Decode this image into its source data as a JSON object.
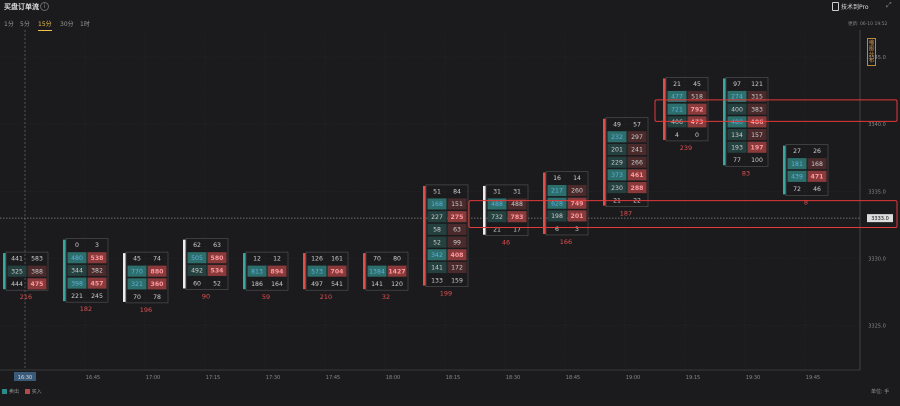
{
  "header": {
    "title": "买盘订单流",
    "info_icon": "info-icon",
    "brand": "技术到Pro",
    "updated": "更新: 06-10 19:52"
  },
  "tabs": [
    {
      "label": "1分",
      "active": false
    },
    {
      "label": "5分",
      "active": false
    },
    {
      "label": "15分",
      "active": true
    },
    {
      "label": "30分",
      "active": false
    },
    {
      "label": "1时",
      "active": false
    }
  ],
  "side_button": "缩图分布",
  "legend": {
    "sell_label": "卖出",
    "buy_label": "买入",
    "sell_color": "#2d8a86",
    "buy_color": "#b24a4a"
  },
  "unit_label": "单位: 手",
  "chart_data": {
    "type": "footprint",
    "ylim": [
      3321.7,
      3347
    ],
    "y_ticks": [
      "3345.0",
      "3340.0",
      "3335.0",
      "3330.0",
      "3325.0"
    ],
    "current_price": "3333.0",
    "crosshair_time": "16:30",
    "x_ticks": [
      "16:45",
      "17:00",
      "17:15",
      "17:30",
      "17:45",
      "18:00",
      "18:15",
      "18:30",
      "18:45",
      "19:00",
      "19:15",
      "19:30",
      "19:45"
    ],
    "bars": [
      {
        "start": 3330,
        "side": "sell",
        "rows": [
          [
            441,
            583
          ],
          [
            325,
            388
          ],
          [
            444,
            475
          ]
        ],
        "hl": [
          [
            2,
            2
          ]
        ],
        "total": "216"
      },
      {
        "start": 3331,
        "side": "sell",
        "rows": [
          [
            0,
            3
          ],
          [
            480,
            538
          ],
          [
            344,
            382
          ],
          [
            398,
            457
          ],
          [
            221,
            245
          ]
        ],
        "hl": [
          [
            1,
            2
          ],
          [
            1,
            1
          ],
          [
            3,
            1
          ],
          [
            3,
            2
          ]
        ],
        "total": "182"
      },
      {
        "start": 3330,
        "side": "buy",
        "rows": [
          [
            45,
            74
          ],
          [
            770,
            880
          ],
          [
            321,
            360
          ],
          [
            70,
            78
          ]
        ],
        "hl": [
          [
            1,
            2
          ],
          [
            1,
            1
          ],
          [
            2,
            1
          ],
          [
            2,
            2
          ]
        ],
        "total": "196"
      },
      {
        "start": 3331,
        "side": "buy",
        "rows": [
          [
            62,
            63
          ],
          [
            505,
            580
          ],
          [
            492,
            534
          ],
          [
            60,
            52
          ]
        ],
        "hl": [
          [
            1,
            2
          ],
          [
            1,
            1
          ],
          [
            2,
            2
          ]
        ],
        "total": "90"
      },
      {
        "start": 3330,
        "side": "sell",
        "rows": [
          [
            12,
            12
          ],
          [
            813,
            894
          ],
          [
            186,
            164
          ]
        ],
        "hl": [
          [
            1,
            2
          ],
          [
            1,
            1
          ]
        ],
        "total": "59"
      },
      {
        "start": 3330,
        "side": "buy",
        "rows": [
          [
            126,
            161
          ],
          [
            573,
            704
          ],
          [
            497,
            541
          ]
        ],
        "hl": [
          [
            1,
            2
          ],
          [
            1,
            1
          ]
        ],
        "total": "210"
      },
      {
        "start": 3330,
        "side": "buy",
        "rows": [
          [
            70,
            80
          ],
          [
            1384,
            1427
          ],
          [
            141,
            120
          ]
        ],
        "hl": [
          [
            1,
            2
          ],
          [
            1,
            1
          ]
        ],
        "total": "32"
      },
      {
        "start": 3335,
        "side": "buy",
        "rows": [
          [
            51,
            84
          ],
          [
            168,
            151
          ],
          [
            227,
            275
          ],
          [
            58,
            63
          ],
          [
            52,
            99
          ],
          [
            342,
            408
          ],
          [
            141,
            172
          ],
          [
            133,
            159
          ]
        ],
        "hl": [
          [
            1,
            1
          ],
          [
            2,
            2
          ],
          [
            5,
            1
          ],
          [
            5,
            2
          ]
        ],
        "total": "199"
      },
      {
        "start": 3335,
        "side": "buy",
        "rows": [
          [
            31,
            31
          ],
          [
            488,
            488
          ],
          [
            732,
            783
          ],
          [
            21,
            17
          ]
        ],
        "hl": [
          [
            1,
            1
          ],
          [
            2,
            2
          ]
        ],
        "total": "46"
      },
      {
        "start": 3336,
        "side": "buy",
        "rows": [
          [
            16,
            14
          ],
          [
            217,
            260
          ],
          [
            628,
            749
          ],
          [
            198,
            201
          ],
          [
            6,
            3
          ]
        ],
        "hl": [
          [
            1,
            1
          ],
          [
            2,
            1
          ],
          [
            2,
            2
          ],
          [
            3,
            2
          ]
        ],
        "total": "166"
      },
      {
        "start": 3340,
        "side": "buy",
        "rows": [
          [
            49,
            57
          ],
          [
            232,
            297
          ],
          [
            201,
            241
          ],
          [
            229,
            266
          ],
          [
            373,
            461
          ],
          [
            230,
            288
          ],
          [
            21,
            22
          ]
        ],
        "hl": [
          [
            1,
            1
          ],
          [
            4,
            2
          ],
          [
            4,
            1
          ],
          [
            5,
            2
          ]
        ],
        "total": "187"
      },
      {
        "start": 3343,
        "side": "buy",
        "rows": [
          [
            21,
            45
          ],
          [
            477,
            518
          ],
          [
            721,
            792
          ],
          [
            406,
            473
          ],
          [
            4,
            0
          ]
        ],
        "hl": [
          [
            1,
            1
          ],
          [
            2,
            2
          ],
          [
            2,
            1
          ],
          [
            3,
            2
          ]
        ],
        "total": "239"
      },
      {
        "start": 3343,
        "side": "sell",
        "rows": [
          [
            97,
            121
          ],
          [
            274,
            315
          ],
          [
            400,
            383
          ],
          [
            480,
            486
          ],
          [
            134,
            157
          ],
          [
            193,
            197
          ],
          [
            77,
            100
          ]
        ],
        "hl": [
          [
            1,
            1
          ],
          [
            3,
            1
          ],
          [
            3,
            2
          ],
          [
            5,
            2
          ]
        ],
        "total": "83"
      },
      {
        "start": 3338,
        "side": "sell",
        "rows": [
          [
            27,
            26
          ],
          [
            181,
            168
          ],
          [
            439,
            471
          ],
          [
            72,
            46
          ]
        ],
        "hl": [
          [
            1,
            1
          ],
          [
            2,
            1
          ],
          [
            2,
            2
          ]
        ],
        "total": "8"
      }
    ],
    "highlight_boxes": [
      {
        "t_from": 10.5,
        "t_to": 14.6,
        "top": 3341.8,
        "bottom": 3340.2
      },
      {
        "t_from": 7.4,
        "t_to": 14.6,
        "top": 3334.3,
        "bottom": 3332.3
      }
    ]
  }
}
